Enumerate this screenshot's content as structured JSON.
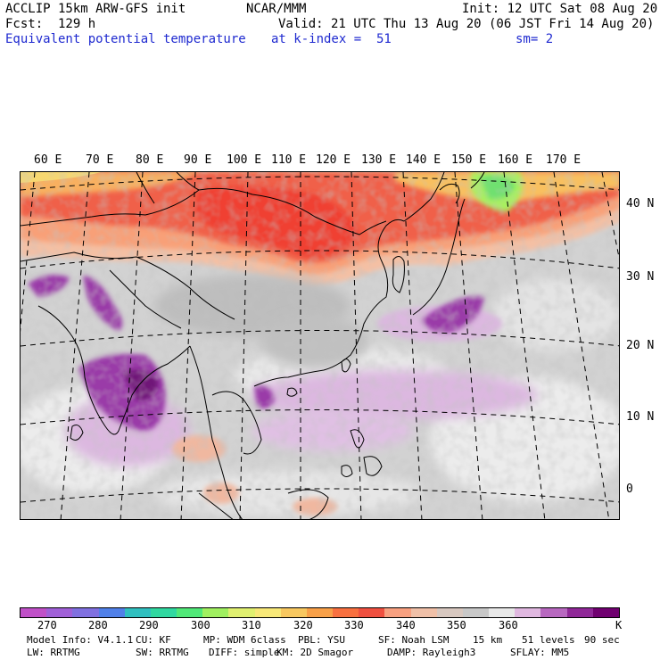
{
  "header": {
    "model": "ACCLIP 15km ARW-GFS init",
    "org": "NCAR/MMM",
    "init": "Init: 12 UTC Sat 08 Aug 20",
    "fcst": "Fcst:  129 h",
    "valid": "Valid: 21 UTC Thu 13 Aug 20 (06 JST Fri 14 Aug 20)",
    "field": "Equivalent potential temperature",
    "level": "at k-index =  51",
    "smooth": "sm= 2"
  },
  "lon_labels": [
    "60 E",
    "70 E",
    "80 E",
    "90 E",
    "100 E",
    "110 E",
    "120 E",
    "130 E",
    "140 E",
    "150 E",
    "160 E",
    "170 E"
  ],
  "lat_labels": [
    "40 N",
    "30 N",
    "20 N",
    "10 N",
    "0"
  ],
  "colorbar": {
    "colors": [
      "#c050c8",
      "#a060d8",
      "#8070e0",
      "#5080e8",
      "#30c0c0",
      "#30d8a0",
      "#50e878",
      "#a0f060",
      "#e0f070",
      "#f8e878",
      "#f8c860",
      "#f8a048",
      "#f87040",
      "#f05040",
      "#f8a080",
      "#f0c0a8",
      "#d8c8c0",
      "#c8c8c8",
      "#e8e8e8",
      "#e0b8e0",
      "#b868c0",
      "#902898",
      "#700070"
    ],
    "ticks": [
      "270",
      "280",
      "290",
      "300",
      "310",
      "320",
      "330",
      "340",
      "350",
      "360"
    ],
    "unit": "K"
  },
  "footer": {
    "line1": [
      "Model Info: V4.1.1",
      "CU: KF",
      "MP: WDM 6class",
      "PBL: YSU",
      "SF: Noah LSM",
      "15 km",
      "51 levels",
      "90 sec"
    ],
    "line2": [
      "LW: RRTMG",
      "SW: RRTMG",
      "DIFF: simple",
      "KM: 2D Smagor",
      "DAMP: Rayleigh3",
      "SFLAY: MM5"
    ]
  }
}
